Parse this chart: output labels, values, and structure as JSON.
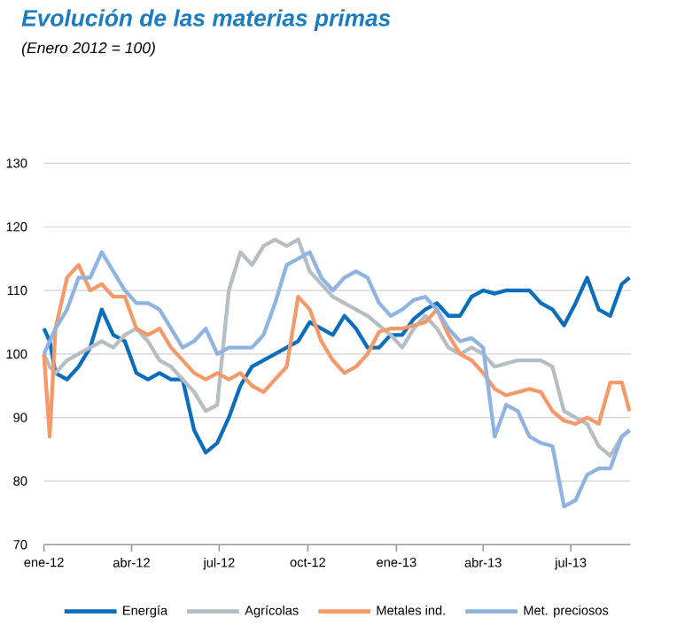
{
  "chart_data": {
    "type": "line",
    "title": "Evolución de las materias primas",
    "subtitle": "(Enero 2012 = 100)",
    "x": [
      "2012-01-01",
      "2012-01-07",
      "2012-01-13",
      "2012-01-25",
      "2012-02-06",
      "2012-02-18",
      "2012-03-01",
      "2012-03-13",
      "2012-03-25",
      "2012-04-06",
      "2012-04-18",
      "2012-04-30",
      "2012-05-12",
      "2012-05-24",
      "2012-06-05",
      "2012-06-17",
      "2012-06-29",
      "2012-07-11",
      "2012-07-23",
      "2012-08-04",
      "2012-08-16",
      "2012-08-28",
      "2012-09-09",
      "2012-09-21",
      "2012-10-03",
      "2012-10-15",
      "2012-10-27",
      "2012-11-08",
      "2012-11-20",
      "2012-12-02",
      "2012-12-14",
      "2012-12-26",
      "2013-01-07",
      "2013-01-19",
      "2013-01-31",
      "2013-02-12",
      "2013-02-24",
      "2013-03-08",
      "2013-03-20",
      "2013-04-01",
      "2013-04-13",
      "2013-04-25",
      "2013-05-07",
      "2013-05-19",
      "2013-05-31",
      "2013-06-12",
      "2013-06-24",
      "2013-07-06",
      "2013-07-18",
      "2013-07-30",
      "2013-08-11",
      "2013-08-23",
      "2013-08-31"
    ],
    "series": [
      {
        "name": "Energía",
        "color": "#0a6ebd",
        "values": [
          104,
          102,
          97,
          96,
          98,
          101,
          107,
          103,
          102,
          97,
          96,
          97,
          96,
          96,
          88,
          84.5,
          86,
          90,
          95,
          98,
          99,
          100,
          101,
          102,
          105,
          104,
          103,
          106,
          104,
          101,
          101,
          103,
          103,
          105.5,
          107,
          108,
          106,
          106,
          109,
          110,
          109.5,
          110,
          110,
          110,
          108,
          107,
          104.5,
          108,
          112,
          107,
          106,
          111,
          112
        ]
      },
      {
        "name": "Agrícolas",
        "color": "#b4bec4",
        "values": [
          100,
          98,
          97,
          99,
          100,
          101,
          102,
          101,
          103,
          104,
          102,
          99,
          98,
          96,
          94,
          91,
          92,
          110,
          116,
          114,
          117,
          118,
          117,
          118,
          113,
          111,
          109,
          108,
          107,
          106,
          104.5,
          103,
          101,
          104,
          106,
          104,
          101,
          100,
          101,
          100,
          98,
          98.5,
          99,
          99,
          99,
          98,
          91,
          90,
          89,
          85.5,
          84,
          87,
          88
        ]
      },
      {
        "name": "Metales ind.",
        "color": "#f49a6a",
        "values": [
          100,
          87,
          104,
          112,
          114,
          110,
          111,
          109,
          109,
          104,
          103,
          104,
          101,
          99,
          97,
          96,
          97,
          96,
          97,
          95,
          94,
          96,
          98,
          109,
          107,
          102,
          99,
          97,
          98,
          100,
          103.5,
          104,
          104,
          104.5,
          105,
          107,
          103,
          100,
          99,
          97,
          94.5,
          93.5,
          94,
          94.5,
          94,
          91,
          89.5,
          89,
          90,
          89,
          95.5,
          95.5,
          91
        ]
      },
      {
        "name": "Met. preciosos",
        "color": "#8fb4e3",
        "values": [
          100,
          102,
          104,
          107,
          112,
          112,
          116,
          113,
          110,
          108,
          108,
          107,
          104,
          101,
          102,
          104,
          100,
          101,
          101,
          101,
          103,
          108,
          114,
          115,
          116,
          112,
          110,
          112,
          113,
          112,
          108,
          106,
          107,
          108.5,
          109,
          107,
          104,
          102,
          102.5,
          101,
          87,
          92,
          91,
          87,
          86,
          85.5,
          76,
          77,
          81,
          82,
          82,
          87,
          88
        ]
      }
    ],
    "xlim": [
      "2012-01-01",
      "2013-09-01"
    ],
    "xticks": [
      {
        "value": "2012-01-01",
        "label": "ene-12"
      },
      {
        "value": "2012-04-01",
        "label": "abr-12"
      },
      {
        "value": "2012-07-01",
        "label": "jul-12"
      },
      {
        "value": "2012-10-01",
        "label": "oct-12"
      },
      {
        "value": "2013-01-01",
        "label": "ene-13"
      },
      {
        "value": "2013-04-01",
        "label": "abr-13"
      },
      {
        "value": "2013-07-01",
        "label": "jul-13"
      }
    ],
    "ylim": [
      70,
      130
    ],
    "yticks": [
      70,
      80,
      90,
      100,
      110,
      120,
      130
    ],
    "grid": "y",
    "legend": "bottom"
  }
}
